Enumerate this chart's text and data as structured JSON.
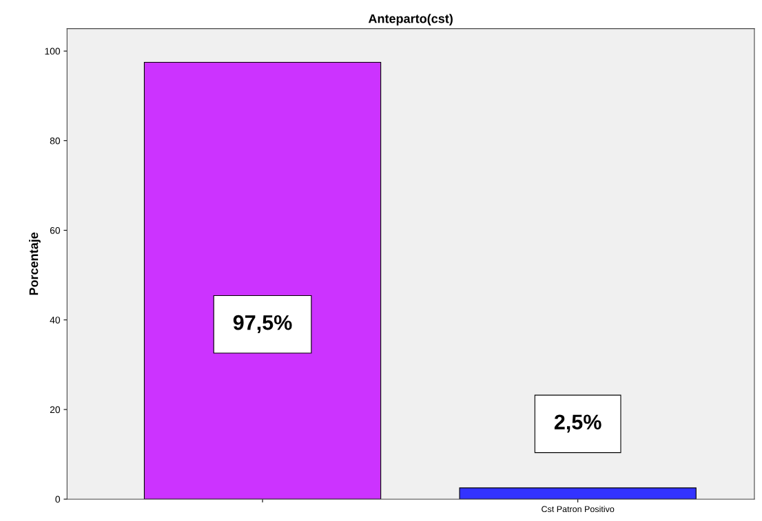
{
  "chart_data": {
    "type": "bar",
    "title": "Anteparto(cst)",
    "ylabel": "Porcentaje",
    "categories": [
      null,
      "Cst Patron Positivo"
    ],
    "values": [
      97.5,
      2.5
    ],
    "colors": [
      "#cc33ff",
      "#3333ff"
    ],
    "value_labels": [
      "97,5%",
      "2,5%"
    ],
    "ylim": [
      0,
      105
    ],
    "yticks": [
      0,
      20,
      40,
      60,
      80,
      100
    ],
    "grid": false
  }
}
